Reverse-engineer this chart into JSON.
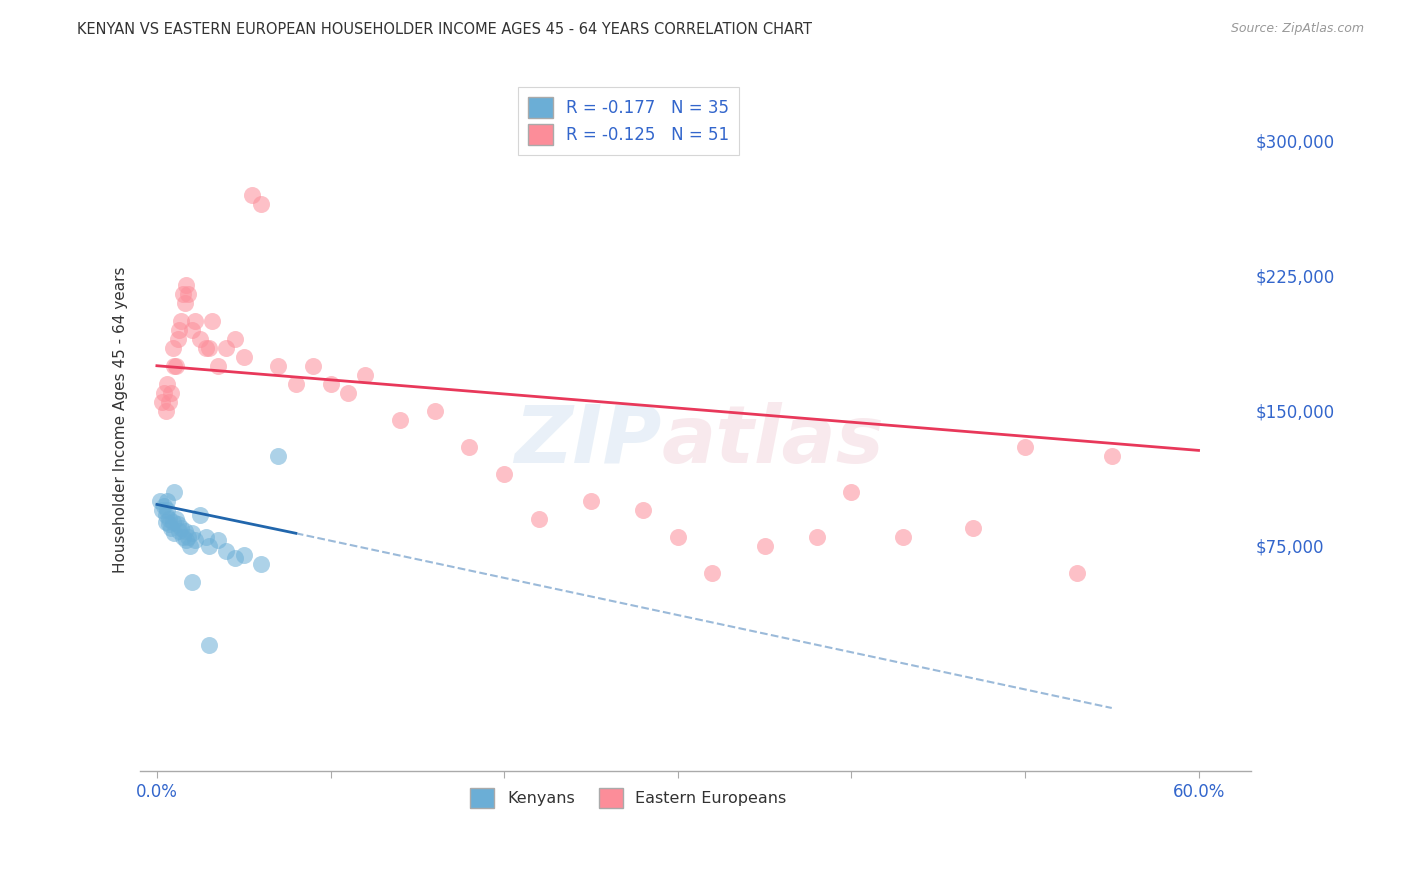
{
  "title": "KENYAN VS EASTERN EUROPEAN HOUSEHOLDER INCOME AGES 45 - 64 YEARS CORRELATION CHART",
  "source": "Source: ZipAtlas.com",
  "xlabel_vals": [
    0,
    10,
    20,
    30,
    40,
    50,
    60
  ],
  "ylabel_ticks": [
    "$75,000",
    "$150,000",
    "$225,000",
    "$300,000"
  ],
  "ylabel_vals": [
    75000,
    150000,
    225000,
    300000
  ],
  "ylabel_label": "Householder Income Ages 45 - 64 years",
  "xlim": [
    -1,
    63
  ],
  "ylim": [
    -50000,
    340000
  ],
  "kenyan_x": [
    0.2,
    0.3,
    0.4,
    0.5,
    0.5,
    0.6,
    0.6,
    0.7,
    0.7,
    0.8,
    0.9,
    1.0,
    1.0,
    1.1,
    1.2,
    1.3,
    1.4,
    1.5,
    1.6,
    1.7,
    1.8,
    1.9,
    2.0,
    2.2,
    2.5,
    2.8,
    3.0,
    3.5,
    4.0,
    4.5,
    5.0,
    6.0,
    7.0,
    2.0,
    3.0
  ],
  "kenyan_y": [
    100000,
    95000,
    97000,
    88000,
    92000,
    100000,
    95000,
    87000,
    90000,
    85000,
    88000,
    105000,
    82000,
    90000,
    87000,
    83000,
    85000,
    80000,
    83000,
    78000,
    80000,
    75000,
    82000,
    78000,
    92000,
    80000,
    75000,
    78000,
    72000,
    68000,
    70000,
    65000,
    125000,
    55000,
    20000
  ],
  "eastern_x": [
    0.3,
    0.4,
    0.5,
    0.6,
    0.7,
    0.8,
    0.9,
    1.0,
    1.1,
    1.2,
    1.3,
    1.4,
    1.5,
    1.6,
    1.7,
    1.8,
    2.0,
    2.2,
    2.5,
    2.8,
    3.0,
    3.2,
    3.5,
    4.0,
    4.5,
    5.0,
    5.5,
    6.0,
    7.0,
    8.0,
    9.0,
    10.0,
    11.0,
    12.0,
    14.0,
    16.0,
    18.0,
    20.0,
    22.0,
    25.0,
    28.0,
    30.0,
    32.0,
    35.0,
    38.0,
    40.0,
    43.0,
    47.0,
    50.0,
    53.0,
    55.0
  ],
  "eastern_y": [
    155000,
    160000,
    150000,
    165000,
    155000,
    160000,
    185000,
    175000,
    175000,
    190000,
    195000,
    200000,
    215000,
    210000,
    220000,
    215000,
    195000,
    200000,
    190000,
    185000,
    185000,
    200000,
    175000,
    185000,
    190000,
    180000,
    270000,
    265000,
    175000,
    165000,
    175000,
    165000,
    160000,
    170000,
    145000,
    150000,
    130000,
    115000,
    90000,
    100000,
    95000,
    80000,
    60000,
    75000,
    80000,
    105000,
    80000,
    85000,
    130000,
    60000,
    125000
  ],
  "kenyan_color": "#6baed6",
  "eastern_color": "#fc8d99",
  "kenyan_line_color": "#2166ac",
  "eastern_line_color": "#e8385a",
  "background_color": "#ffffff",
  "grid_color": "#c8c8c8",
  "kenyan_line_x0": 0,
  "kenyan_line_y0": 98000,
  "kenyan_line_x1": 8,
  "kenyan_line_y1": 82000,
  "kenyan_dash_x0": 8,
  "kenyan_dash_y0": 82000,
  "kenyan_dash_x1": 55,
  "kenyan_dash_y1": -15000,
  "eastern_line_x0": 0,
  "eastern_line_y0": 175000,
  "eastern_line_x1": 60,
  "eastern_line_y1": 128000
}
